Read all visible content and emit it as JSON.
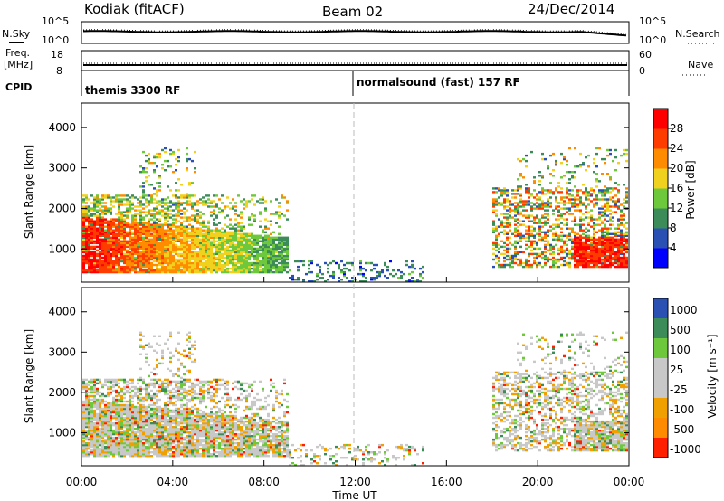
{
  "header": {
    "station": "Kodiak (fitACF)",
    "beam": "Beam 02",
    "date": "24/Dec/2014"
  },
  "noise_panel": {
    "left_label": "N.Sky",
    "right_label": "N.Search",
    "left_ticks": [
      "10^5",
      "10^0"
    ],
    "right_ticks": [
      "10^5",
      "10^0"
    ]
  },
  "freq_panel": {
    "left_label_1": "Freq.",
    "left_label_2": "[MHz]",
    "right_label": "Nave",
    "left_ticks": [
      "18",
      "8"
    ],
    "right_ticks": [
      "60",
      "0"
    ]
  },
  "cpid": {
    "label": "CPID",
    "mode_1": "themis 3300 RF",
    "mode_2": "normalsound (fast) 157 RF"
  },
  "chart_data": [
    {
      "type": "heatmap",
      "quantity": "Power",
      "ylabel": "Slant Range [km]",
      "yticks": [
        "1000",
        "2000",
        "3000",
        "4000"
      ],
      "ylim": [
        180,
        4600
      ],
      "colorbar_label": "Power [dB]",
      "colorbar_ticks": [
        "4",
        "8",
        "12",
        "16",
        "20",
        "24",
        "28"
      ],
      "colorbar_range": [
        0,
        32
      ],
      "colors": [
        "#0000ff",
        "#2a50b4",
        "#3c8c5a",
        "#6ec83c",
        "#f0d21e",
        "#ff8c00",
        "#ff3c00",
        "#ff0000"
      ]
    },
    {
      "type": "heatmap",
      "quantity": "Velocity",
      "ylabel": "Slant Range [km]",
      "yticks": [
        "1000",
        "2000",
        "3000",
        "4000"
      ],
      "ylim": [
        180,
        4600
      ],
      "colorbar_label": "Velocity [m s⁻¹]",
      "colorbar_ticks": [
        "1000",
        "500",
        "100",
        "25",
        "-25",
        "-100",
        "-500",
        "-1000"
      ],
      "colors": [
        "#2a50b4",
        "#3c8c5a",
        "#6ec83c",
        "#c8c8c8",
        "#c8c8c8",
        "#f0a000",
        "#ff8c00",
        "#ff2000"
      ]
    }
  ],
  "xaxis": {
    "label": "Time UT",
    "ticks": [
      "00:00",
      "04:00",
      "08:00",
      "12:00",
      "16:00",
      "20:00",
      "00:00"
    ]
  }
}
